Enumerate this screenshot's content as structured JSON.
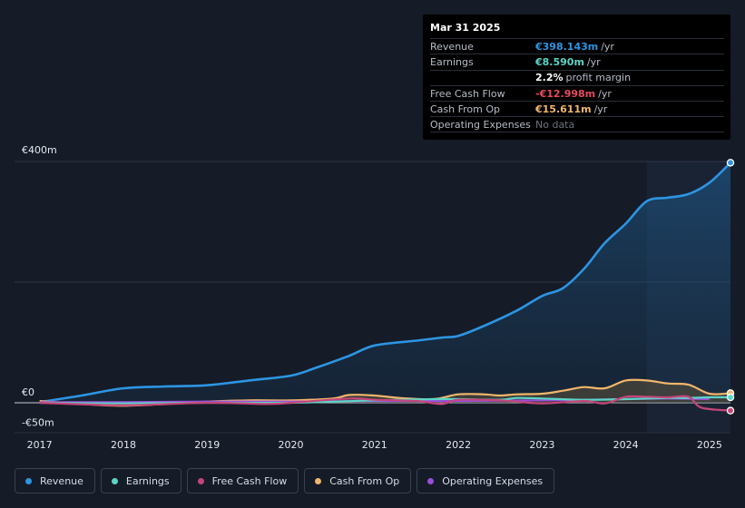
{
  "tooltip": {
    "date": "Mar 31 2025",
    "rows": [
      {
        "label": "Revenue",
        "value": "€398.143m",
        "unit": "/yr",
        "color": "#2d95e3"
      },
      {
        "label": "Earnings",
        "value": "€8.590m",
        "unit": "/yr",
        "color": "#ffffff"
      },
      {
        "label": "",
        "value": "2.2%",
        "unit": "profit margin",
        "color": "#ffffff"
      },
      {
        "label": "Free Cash Flow",
        "value": "-€12.998m",
        "unit": "/yr",
        "color": "#e84a5f"
      },
      {
        "label": "Cash From Op",
        "value": "€15.611m",
        "unit": "/yr",
        "color": "#f1b66b"
      },
      {
        "label": "Operating Expenses",
        "value": "No data",
        "unit": "",
        "color": "#6b7280"
      }
    ]
  },
  "chart_data": {
    "type": "area",
    "ylim": [
      -50,
      400
    ],
    "xlim": [
      2016.7,
      2025.25
    ],
    "y_tick_labels": [
      {
        "value": 400,
        "label": "€400m"
      },
      {
        "value": 0,
        "label": "€0"
      },
      {
        "value": -50,
        "label": "-€50m"
      }
    ],
    "x_ticks": [
      2017,
      2018,
      2019,
      2020,
      2021,
      2022,
      2023,
      2024,
      2025
    ],
    "past_data_start": 2024.25,
    "series": [
      {
        "name": "Revenue",
        "color": "#2d95e3",
        "filled": true,
        "points": [
          [
            2017.0,
            1
          ],
          [
            2017.5,
            12
          ],
          [
            2018.0,
            24
          ],
          [
            2018.5,
            27
          ],
          [
            2019.0,
            29
          ],
          [
            2019.5,
            37
          ],
          [
            2020.0,
            45
          ],
          [
            2020.3,
            58
          ],
          [
            2020.7,
            78
          ],
          [
            2021.0,
            95
          ],
          [
            2021.5,
            103
          ],
          [
            2021.8,
            108
          ],
          [
            2022.0,
            111
          ],
          [
            2022.3,
            127
          ],
          [
            2022.7,
            153
          ],
          [
            2023.0,
            177
          ],
          [
            2023.25,
            190
          ],
          [
            2023.5,
            222
          ],
          [
            2023.75,
            265
          ],
          [
            2024.0,
            297
          ],
          [
            2024.25,
            334
          ],
          [
            2024.5,
            340
          ],
          [
            2024.75,
            346
          ],
          [
            2025.0,
            365
          ],
          [
            2025.25,
            398
          ]
        ]
      },
      {
        "name": "Earnings",
        "color": "#5ad6c6",
        "filled": false,
        "points": [
          [
            2017.0,
            0
          ],
          [
            2018.0,
            -1
          ],
          [
            2019.0,
            0
          ],
          [
            2020.0,
            0
          ],
          [
            2021.0,
            4
          ],
          [
            2021.7,
            6
          ],
          [
            2022.0,
            6
          ],
          [
            2022.5,
            5
          ],
          [
            2022.7,
            8
          ],
          [
            2023.0,
            7
          ],
          [
            2023.5,
            5
          ],
          [
            2024.0,
            6
          ],
          [
            2024.5,
            8
          ],
          [
            2024.75,
            8
          ],
          [
            2025.0,
            9
          ],
          [
            2025.25,
            9
          ]
        ]
      },
      {
        "name": "Free Cash Flow",
        "color": "#c5457a",
        "filled": false,
        "points": [
          [
            2017.0,
            0
          ],
          [
            2018.0,
            -4
          ],
          [
            2019.0,
            0
          ],
          [
            2019.7,
            -2
          ],
          [
            2020.0,
            0
          ],
          [
            2020.7,
            7
          ],
          [
            2021.0,
            5
          ],
          [
            2021.5,
            3
          ],
          [
            2021.8,
            -2
          ],
          [
            2022.0,
            5
          ],
          [
            2022.5,
            4
          ],
          [
            2023.0,
            -1
          ],
          [
            2023.5,
            3
          ],
          [
            2023.75,
            -1
          ],
          [
            2024.0,
            10
          ],
          [
            2024.25,
            10
          ],
          [
            2024.5,
            9
          ],
          [
            2024.75,
            10
          ],
          [
            2024.9,
            -8
          ],
          [
            2025.25,
            -13
          ]
        ]
      },
      {
        "name": "Cash From Op",
        "color": "#f1b66b",
        "filled": true,
        "points": [
          [
            2017.0,
            3
          ],
          [
            2017.5,
            -2
          ],
          [
            2018.0,
            -5
          ],
          [
            2018.5,
            -2
          ],
          [
            2019.0,
            2
          ],
          [
            2019.5,
            4
          ],
          [
            2020.0,
            4
          ],
          [
            2020.5,
            7
          ],
          [
            2020.7,
            13
          ],
          [
            2021.0,
            12
          ],
          [
            2021.3,
            8
          ],
          [
            2021.7,
            6
          ],
          [
            2022.0,
            14
          ],
          [
            2022.3,
            14
          ],
          [
            2022.5,
            12
          ],
          [
            2022.7,
            14
          ],
          [
            2023.0,
            15
          ],
          [
            2023.25,
            20
          ],
          [
            2023.5,
            26
          ],
          [
            2023.75,
            24
          ],
          [
            2024.0,
            37
          ],
          [
            2024.25,
            37
          ],
          [
            2024.5,
            32
          ],
          [
            2024.75,
            30
          ],
          [
            2025.0,
            15
          ],
          [
            2025.25,
            16
          ]
        ]
      },
      {
        "name": "Operating Expenses",
        "color": "#9b4ddb",
        "filled": false,
        "points": [
          [
            2017.0,
            1
          ],
          [
            2018.0,
            1
          ],
          [
            2019.0,
            2
          ],
          [
            2020.0,
            2
          ],
          [
            2021.0,
            3
          ],
          [
            2022.0,
            3
          ],
          [
            2023.0,
            4
          ],
          [
            2024.0,
            6
          ],
          [
            2024.5,
            7
          ],
          [
            2025.0,
            6
          ]
        ]
      }
    ]
  },
  "legend": [
    {
      "label": "Revenue",
      "color": "#2d95e3"
    },
    {
      "label": "Earnings",
      "color": "#5ad6c6"
    },
    {
      "label": "Free Cash Flow",
      "color": "#c5457a"
    },
    {
      "label": "Cash From Op",
      "color": "#f1b66b"
    },
    {
      "label": "Operating Expenses",
      "color": "#9b4ddb"
    }
  ]
}
